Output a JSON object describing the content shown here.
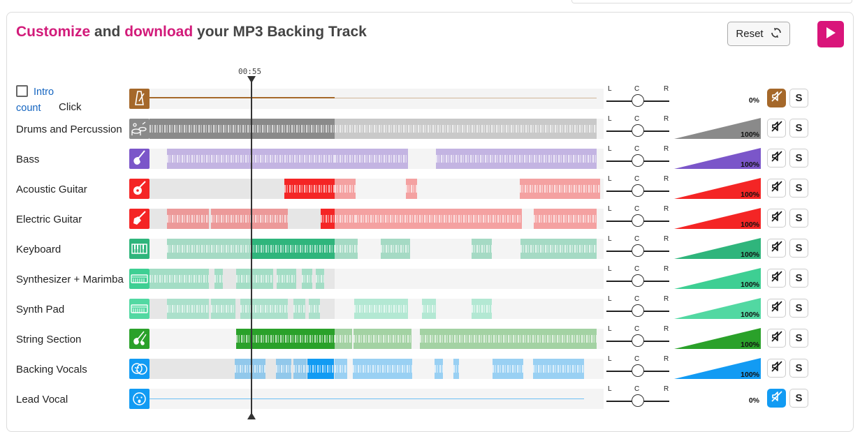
{
  "title": {
    "part1": "Customize",
    "part2": " and ",
    "part3": "download",
    "part4": " your MP3 Backing Track"
  },
  "reset_label": "Reset",
  "playhead_time": "00:55",
  "intro": {
    "word1": "Intro",
    "word2": "count",
    "click": "Click"
  },
  "pan_labels": {
    "l": "L",
    "c": "C",
    "r": "R"
  },
  "solo_label": "S",
  "colors": {
    "accent": "#d9157a",
    "panel_border": "#dcdcdc"
  },
  "tracks": [
    {
      "name": "",
      "icon": "metronome-icon",
      "color": "#a5682a",
      "volume": "0%",
      "muted": true
    },
    {
      "name": "Drums and Percussion",
      "icon": "drums-icon",
      "color": "#8a8a8a",
      "volume": "100%",
      "muted": false
    },
    {
      "name": "Bass",
      "icon": "bass-guitar-icon",
      "color": "#7b56c9",
      "volume": "100%",
      "muted": false
    },
    {
      "name": "Acoustic Guitar",
      "icon": "acoustic-guitar-icon",
      "color": "#f42525",
      "volume": "100%",
      "muted": false
    },
    {
      "name": "Electric Guitar",
      "icon": "electric-guitar-icon",
      "color": "#f42525",
      "volume": "100%",
      "muted": false
    },
    {
      "name": "Keyboard",
      "icon": "piano-icon",
      "color": "#2fb57c",
      "volume": "100%",
      "muted": false
    },
    {
      "name": "Synthesizer + Marimba",
      "icon": "synthesizer-icon",
      "color": "#3ecf93",
      "volume": "100%",
      "muted": false
    },
    {
      "name": "Synth Pad",
      "icon": "synth-pad-icon",
      "color": "#52d8a2",
      "volume": "100%",
      "muted": false
    },
    {
      "name": "String Section",
      "icon": "violin-icon",
      "color": "#2aa12a",
      "volume": "100%",
      "muted": false
    },
    {
      "name": "Backing Vocals",
      "icon": "backing-vocals-icon",
      "color": "#129bf3",
      "volume": "100%",
      "muted": false
    },
    {
      "name": "Lead Vocal",
      "icon": "lead-vocal-icon",
      "color": "#129bf3",
      "volume": "0%",
      "muted": true
    }
  ]
}
